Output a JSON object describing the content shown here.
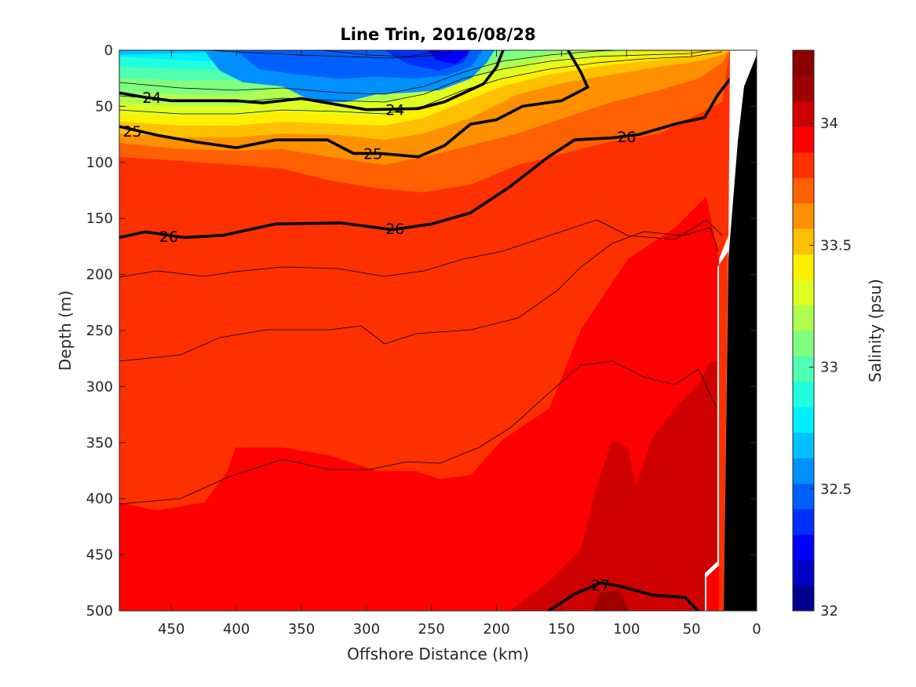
{
  "chart_data": {
    "type": "contour",
    "title": "Line Trin, 2016/08/28",
    "xlabel": "Offshore Distance (km)",
    "ylabel": "Depth (m)",
    "xlim": [
      490,
      0
    ],
    "ylim": [
      0,
      500
    ],
    "x_reversed": true,
    "y_reversed": true,
    "x_ticks": [
      "450",
      "400",
      "350",
      "300",
      "250",
      "200",
      "150",
      "100",
      "50",
      "0"
    ],
    "x_tick_values": [
      450,
      400,
      350,
      300,
      250,
      200,
      150,
      100,
      50,
      0
    ],
    "y_ticks": [
      "0",
      "50",
      "100",
      "150",
      "200",
      "250",
      "300",
      "350",
      "400",
      "450",
      "500"
    ],
    "y_tick_values": [
      0,
      50,
      100,
      150,
      200,
      250,
      300,
      350,
      400,
      450,
      500
    ],
    "colorbar": {
      "label": "Salinity (psu)",
      "range": [
        32,
        34.3
      ],
      "ticks": [
        "32",
        "32.5",
        "33",
        "33.5",
        "34"
      ],
      "tick_values": [
        32,
        32.5,
        33,
        33.5,
        34
      ],
      "level_step": 0.1,
      "colormap": [
        "#00008f",
        "#0000c4",
        "#0000ff",
        "#0030ff",
        "#0060ff",
        "#0090ff",
        "#00c0ff",
        "#00efff",
        "#20ffdf",
        "#50ffaf",
        "#80ff80",
        "#afff50",
        "#dfff20",
        "#ffef00",
        "#ffc000",
        "#ff9000",
        "#ff6000",
        "#ff3000",
        "#ff0000",
        "#cf0000",
        "#9f0000",
        "#8b0000"
      ]
    },
    "salinity_field": {
      "description_points": [
        {
          "x": 230,
          "depth": 5,
          "salinity": 32.45
        },
        {
          "x": 300,
          "depth": 30,
          "salinity": 32.7
        },
        {
          "x": 450,
          "depth": 20,
          "salinity": 32.9
        },
        {
          "x": 150,
          "depth": 60,
          "salinity": 33.1
        },
        {
          "x": 50,
          "depth": 20,
          "salinity": 33.5
        },
        {
          "x": 350,
          "depth": 120,
          "salinity": 33.2
        },
        {
          "x": 300,
          "depth": 170,
          "salinity": 33.7
        },
        {
          "x": 400,
          "depth": 300,
          "salinity": 34.0
        },
        {
          "x": 200,
          "depth": 420,
          "salinity": 34.1
        },
        {
          "x": 100,
          "depth": 380,
          "salinity": 34.2
        },
        {
          "x": 115,
          "depth": 495,
          "salinity": 34.3
        }
      ]
    },
    "density_contours": [
      {
        "label": "24",
        "bold": true,
        "points": [
          [
            490,
            38
          ],
          [
            470,
            42
          ],
          [
            450,
            45
          ],
          [
            400,
            45
          ],
          [
            380,
            47
          ],
          [
            350,
            43
          ],
          [
            300,
            53
          ],
          [
            260,
            52
          ],
          [
            240,
            46
          ],
          [
            210,
            30
          ],
          [
            200,
            15
          ],
          [
            195,
            0
          ]
        ]
      },
      {
        "label": "25",
        "bold": true,
        "points": [
          [
            490,
            68
          ],
          [
            460,
            76
          ],
          [
            430,
            82
          ],
          [
            400,
            87
          ],
          [
            370,
            80
          ],
          [
            330,
            80
          ],
          [
            310,
            92
          ],
          [
            290,
            92
          ],
          [
            260,
            95
          ],
          [
            240,
            85
          ],
          [
            220,
            66
          ],
          [
            200,
            62
          ],
          [
            180,
            50
          ],
          [
            150,
            45
          ],
          [
            130,
            33
          ],
          [
            135,
            20
          ],
          [
            145,
            0
          ]
        ]
      },
      {
        "label": "26",
        "bold": true,
        "points": [
          [
            490,
            167
          ],
          [
            470,
            162
          ],
          [
            440,
            167
          ],
          [
            410,
            165
          ],
          [
            390,
            160
          ],
          [
            370,
            155
          ],
          [
            320,
            154
          ],
          [
            280,
            160
          ],
          [
            250,
            155
          ],
          [
            220,
            145
          ],
          [
            190,
            122
          ],
          [
            160,
            95
          ],
          [
            140,
            80
          ],
          [
            110,
            78
          ],
          [
            90,
            75
          ],
          [
            60,
            65
          ],
          [
            40,
            60
          ],
          [
            30,
            40
          ],
          [
            20,
            25
          ]
        ]
      },
      {
        "label": "27",
        "bold": true,
        "points": [
          [
            160,
            500
          ],
          [
            140,
            485
          ],
          [
            120,
            475
          ],
          [
            105,
            478
          ],
          [
            80,
            486
          ],
          [
            55,
            488
          ],
          [
            45,
            500
          ]
        ]
      }
    ],
    "masked_region": {
      "description": "white band near coast and black bottom topography",
      "bottom_color": "#000000",
      "mask_color": "#ffffff"
    }
  }
}
